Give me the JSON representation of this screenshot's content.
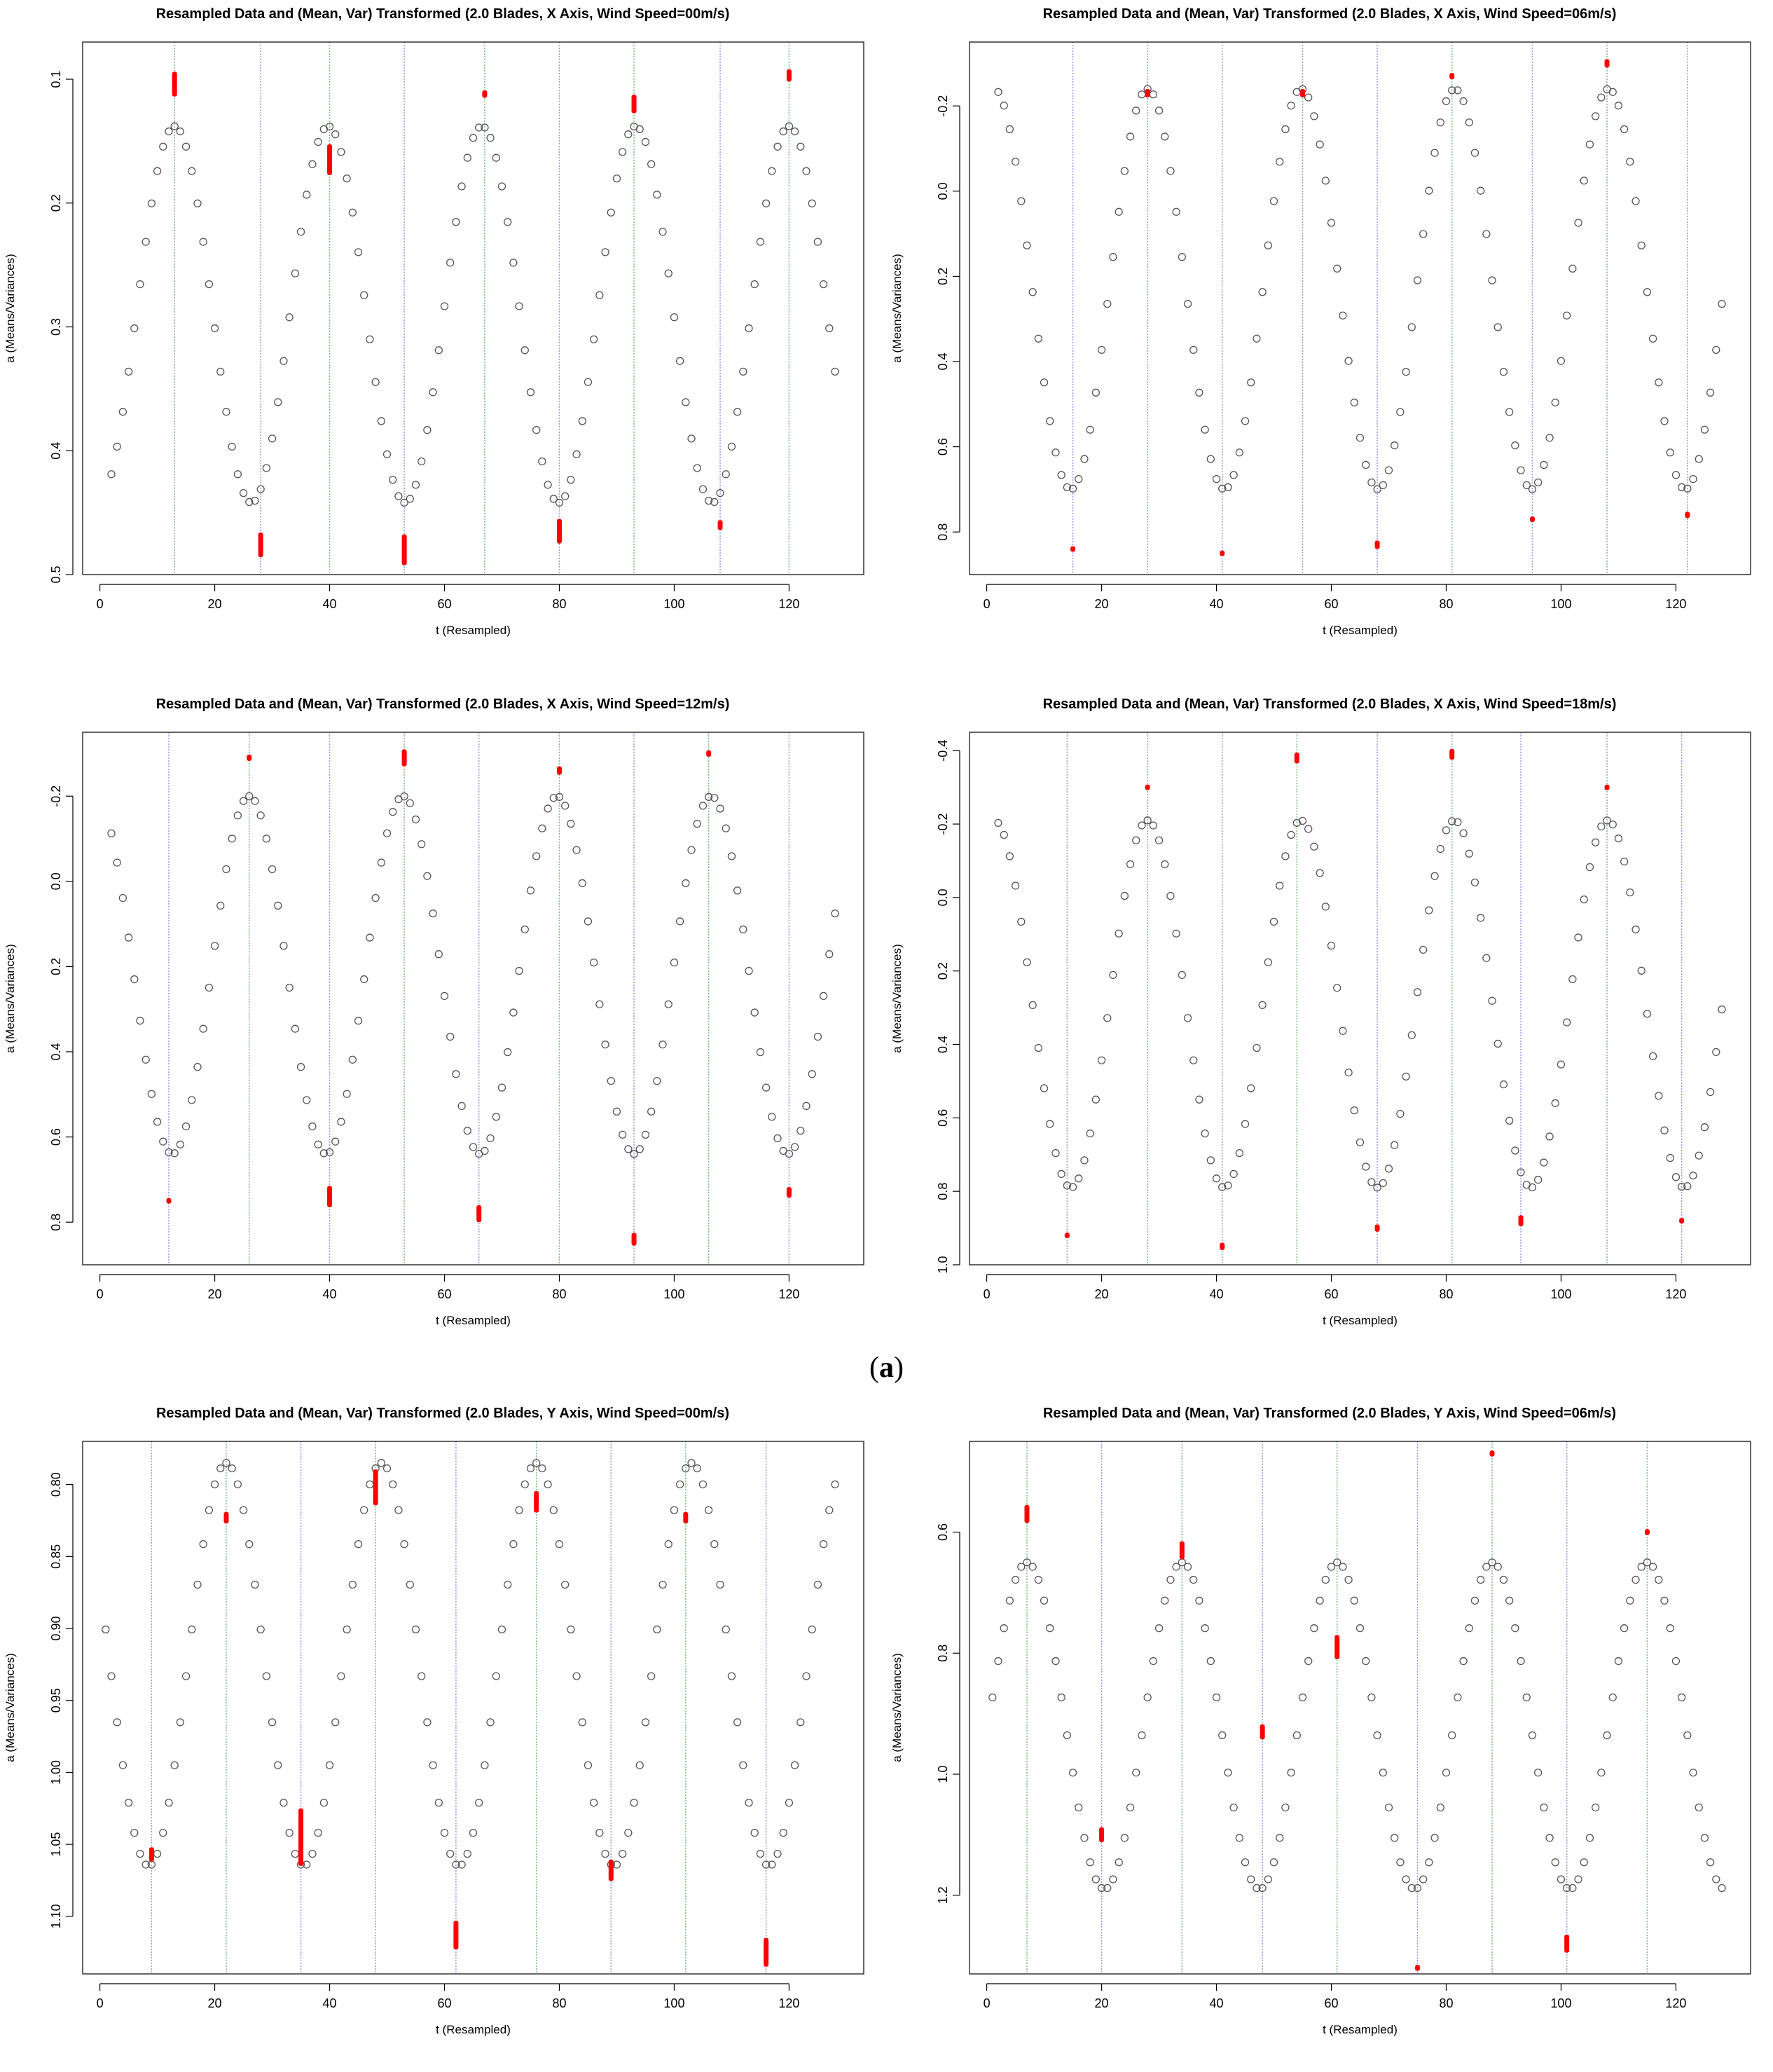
{
  "caption": {
    "open": "(",
    "letter": "a",
    "close": ")"
  },
  "colors": {
    "points": "#555555",
    "error_bars": "#ff0000",
    "green_lines": "#7fbf7f",
    "blue_lines": "#9999ee"
  },
  "chart_data": [
    {
      "type": "scatter",
      "title": "Resampled Data and (Mean, Var) Transformed (2.0 Blades, X Axis, Wind Speed=00m/s)",
      "xlabel": "t (Resampled)",
      "ylabel": "a (Means/Variances)",
      "xlim": [
        -3,
        133
      ],
      "ylim": [
        0.5,
        0.07
      ],
      "xticks": [
        0,
        20,
        40,
        60,
        80,
        100,
        120
      ],
      "yticks": [
        0.1,
        0.2,
        0.3,
        0.4,
        0.5
      ],
      "ytick_labels": [
        "0.1",
        "0.2",
        "0.3",
        "0.4",
        "0.5"
      ],
      "first_t": 2,
      "phase": 13,
      "amplitude": 0.152,
      "center": 0.29,
      "period": 26.75,
      "green_lines": [
        13,
        40,
        67,
        93,
        120
      ],
      "blue_lines": [
        28,
        53,
        80,
        108
      ],
      "bars": [
        {
          "t": 13,
          "y": 0.104,
          "len": 0.02
        },
        {
          "t": 28,
          "y": 0.476,
          "len": 0.02
        },
        {
          "t": 40,
          "y": 0.165,
          "len": 0.025
        },
        {
          "t": 53,
          "y": 0.48,
          "len": 0.025
        },
        {
          "t": 67,
          "y": 0.112,
          "len": 0.006
        },
        {
          "t": 80,
          "y": 0.465,
          "len": 0.02
        },
        {
          "t": 93,
          "y": 0.12,
          "len": 0.015
        },
        {
          "t": 108,
          "y": 0.46,
          "len": 0.008
        },
        {
          "t": 120,
          "y": 0.097,
          "len": 0.01
        }
      ]
    },
    {
      "type": "scatter",
      "title": "Resampled Data and (Mean, Var) Transformed (2.0 Blades, X Axis, Wind Speed=06m/s)",
      "xlabel": "t (Resampled)",
      "ylabel": "a (Means/Variances)",
      "xlim": [
        -3,
        133
      ],
      "ylim": [
        0.9,
        -0.35
      ],
      "xticks": [
        0,
        20,
        40,
        60,
        80,
        100,
        120
      ],
      "yticks": [
        -0.2,
        0,
        0.2,
        0.4,
        0.6,
        0.8
      ],
      "ytick_labels": [
        "-0.2",
        "0.0",
        "0.2",
        "0.4",
        "0.6",
        "0.8"
      ],
      "first_t": 2,
      "phase": 28,
      "amplitude": 0.47,
      "center": 0.23,
      "period": 26.75,
      "green_lines": [
        28,
        55,
        81,
        108
      ],
      "blue_lines": [
        15,
        41,
        68,
        95,
        122
      ],
      "bars": [
        {
          "t": 15,
          "y": 0.84,
          "len": 0.01
        },
        {
          "t": 28,
          "y": -0.23,
          "len": 0.02
        },
        {
          "t": 41,
          "y": 0.85,
          "len": 0.01
        },
        {
          "t": 55,
          "y": -0.23,
          "len": 0.02
        },
        {
          "t": 68,
          "y": 0.83,
          "len": 0.02
        },
        {
          "t": 81,
          "y": -0.27,
          "len": 0.015
        },
        {
          "t": 95,
          "y": 0.77,
          "len": 0.01
        },
        {
          "t": 108,
          "y": -0.3,
          "len": 0.02
        },
        {
          "t": 122,
          "y": 0.76,
          "len": 0.015
        }
      ]
    },
    {
      "type": "scatter",
      "title": "Resampled Data and (Mean, Var) Transformed (2.0 Blades, X Axis, Wind Speed=12m/s)",
      "xlabel": "t (Resampled)",
      "ylabel": "a (Means/Variances)",
      "xlim": [
        -3,
        133
      ],
      "ylim": [
        0.9,
        -0.35
      ],
      "xticks": [
        0,
        20,
        40,
        60,
        80,
        100,
        120
      ],
      "yticks": [
        -0.2,
        0,
        0.2,
        0.4,
        0.6,
        0.8
      ],
      "ytick_labels": [
        "-0.2",
        "0.0",
        "0.2",
        "0.4",
        "0.6",
        "0.8"
      ],
      "first_t": 2,
      "phase": 26,
      "amplitude": 0.42,
      "center": 0.22,
      "period": 26.8,
      "green_lines": [
        26,
        53,
        80,
        106
      ],
      "blue_lines": [
        12,
        40,
        66,
        93,
        120
      ],
      "bars": [
        {
          "t": 12,
          "y": 0.75,
          "len": 0.01
        },
        {
          "t": 26,
          "y": -0.29,
          "len": 0.015
        },
        {
          "t": 40,
          "y": 0.74,
          "len": 0.05
        },
        {
          "t": 53,
          "y": -0.29,
          "len": 0.04
        },
        {
          "t": 66,
          "y": 0.78,
          "len": 0.04
        },
        {
          "t": 80,
          "y": -0.26,
          "len": 0.02
        },
        {
          "t": 93,
          "y": 0.84,
          "len": 0.03
        },
        {
          "t": 106,
          "y": -0.3,
          "len": 0.015
        },
        {
          "t": 120,
          "y": 0.73,
          "len": 0.025
        }
      ]
    },
    {
      "type": "scatter",
      "title": "Resampled Data and (Mean, Var) Transformed (2.0 Blades, X Axis, Wind Speed=18m/s)",
      "xlabel": "t (Resampled)",
      "ylabel": "a (Means/Variances)",
      "xlim": [
        -3,
        133
      ],
      "ylim": [
        1.0,
        -0.45
      ],
      "xticks": [
        0,
        20,
        40,
        60,
        80,
        100,
        120
      ],
      "yticks": [
        -0.4,
        -0.2,
        0,
        0.2,
        0.4,
        0.6,
        0.8,
        1.0
      ],
      "ytick_labels": [
        "-0.4",
        "-0.2",
        "0.0",
        "0.2",
        "0.4",
        "0.6",
        "0.8",
        "1.0"
      ],
      "first_t": 2,
      "phase": 28,
      "amplitude": 0.5,
      "center": 0.29,
      "period": 26.7,
      "green_lines": [
        28,
        54,
        81,
        108
      ],
      "blue_lines": [
        14,
        41,
        68,
        93,
        121
      ],
      "bars": [
        {
          "t": 14,
          "y": 0.92,
          "len": 0.01
        },
        {
          "t": 28,
          "y": -0.3,
          "len": 0.015
        },
        {
          "t": 41,
          "y": 0.95,
          "len": 0.02
        },
        {
          "t": 54,
          "y": -0.38,
          "len": 0.03
        },
        {
          "t": 68,
          "y": 0.9,
          "len": 0.02
        },
        {
          "t": 81,
          "y": -0.39,
          "len": 0.03
        },
        {
          "t": 93,
          "y": 0.88,
          "len": 0.03
        },
        {
          "t": 108,
          "y": -0.3,
          "len": 0.01
        },
        {
          "t": 121,
          "y": 0.88,
          "len": 0.015
        }
      ]
    },
    {
      "type": "scatter",
      "title": "Resampled Data and (Mean, Var) Transformed (2.0 Blades, Y Axis, Wind Speed=00m/s)",
      "xlabel": "t (Resampled)",
      "ylabel": "a (Means/Variances)",
      "xlim": [
        -3,
        133
      ],
      "ylim": [
        1.14,
        0.77
      ],
      "xticks": [
        0,
        20,
        40,
        60,
        80,
        100,
        120
      ],
      "yticks": [
        0.8,
        0.85,
        0.9,
        0.95,
        1.0,
        1.05,
        1.1
      ],
      "ytick_labels": [
        "0.80",
        "0.85",
        "0.90",
        "0.95",
        "1.00",
        "1.05",
        "1.10"
      ],
      "first_t": 1,
      "phase": 22,
      "amplitude": 0.14,
      "center": 0.925,
      "period": 27,
      "green_lines": [
        22,
        48,
        76,
        102
      ],
      "blue_lines": [
        9,
        35,
        62,
        89,
        116
      ],
      "bars": [
        {
          "t": 9,
          "y": 1.057,
          "len": 0.01
        },
        {
          "t": 22,
          "y": 0.823,
          "len": 0.008
        },
        {
          "t": 35,
          "y": 1.045,
          "len": 0.04
        },
        {
          "t": 48,
          "y": 0.802,
          "len": 0.025
        },
        {
          "t": 62,
          "y": 1.113,
          "len": 0.02
        },
        {
          "t": 76,
          "y": 0.812,
          "len": 0.015
        },
        {
          "t": 89,
          "y": 1.068,
          "len": 0.015
        },
        {
          "t": 102,
          "y": 0.823,
          "len": 0.008
        },
        {
          "t": 116,
          "y": 1.125,
          "len": 0.02
        }
      ]
    },
    {
      "type": "scatter",
      "title": "Resampled Data and (Mean, Var) Transformed (2.0 Blades, Y Axis, Wind Speed=06m/s)",
      "xlabel": "t (Resampled)",
      "ylabel": "a (Means/Variances)",
      "xlim": [
        -3,
        133
      ],
      "ylim": [
        1.33,
        0.45
      ],
      "xticks": [
        0,
        20,
        40,
        60,
        80,
        100,
        120
      ],
      "yticks": [
        0.6,
        0.8,
        1.0,
        1.2
      ],
      "ytick_labels": [
        "0.6",
        "0.8",
        "1.0",
        "1.2"
      ],
      "first_t": 1,
      "phase": 7,
      "amplitude": 0.27,
      "center": 0.92,
      "period": 27,
      "green_lines": [
        7,
        34,
        61,
        88,
        115
      ],
      "blue_lines": [
        20,
        48,
        75,
        101
      ],
      "bars": [
        {
          "t": 7,
          "y": 0.57,
          "len": 0.03
        },
        {
          "t": 20,
          "y": 1.1,
          "len": 0.025
        },
        {
          "t": 34,
          "y": 0.63,
          "len": 0.03
        },
        {
          "t": 48,
          "y": 0.93,
          "len": 0.025
        },
        {
          "t": 61,
          "y": 0.79,
          "len": 0.04
        },
        {
          "t": 75,
          "y": 1.32,
          "len": 0.01
        },
        {
          "t": 88,
          "y": 0.47,
          "len": 0.01
        },
        {
          "t": 101,
          "y": 1.28,
          "len": 0.03
        },
        {
          "t": 115,
          "y": 0.6,
          "len": 0.01
        }
      ]
    }
  ]
}
